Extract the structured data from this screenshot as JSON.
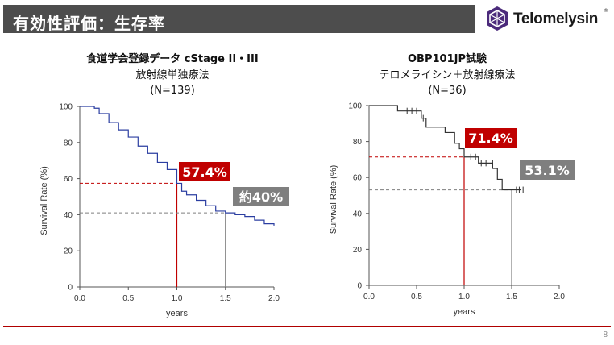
{
  "header": {
    "title": "有効性評価：生存率"
  },
  "logo": {
    "text": "Telomelysin",
    "reg": "®",
    "icon": "telomelysin-logo-icon",
    "color": "#4b2a7b"
  },
  "page_number": "8",
  "colors": {
    "kaplan_meier_line": "#2b3ea1",
    "highlight_red": "#c00000",
    "label_gray": "#7f7f7f",
    "header_bg": "#4d4d4d"
  },
  "left_title": {
    "line1": "食道学会登録データ cStage II・III",
    "line2": "放射線単独療法",
    "line3": "(N=139)"
  },
  "right_title": {
    "line1": "OBP101JP試験",
    "line2": "テロメライシン＋放射線療法",
    "line3": "(N=36)"
  },
  "chart_data": [
    {
      "type": "line",
      "xlabel": "years",
      "ylabel": "Survival Rate (%)",
      "xlim": [
        0,
        2.0
      ],
      "ylim": [
        0,
        100
      ],
      "xticks": [
        "0.0",
        "0.5",
        "1.0",
        "1.5",
        "2.0"
      ],
      "yticks": [
        "0",
        "20",
        "40",
        "60",
        "80",
        "100"
      ],
      "grid": false,
      "series": [
        {
          "x": [
            0,
            0.15,
            0.2,
            0.3,
            0.4,
            0.5,
            0.6,
            0.7,
            0.8,
            0.9,
            1.0,
            1.05,
            1.1,
            1.2,
            1.3,
            1.4,
            1.5,
            1.6,
            1.7,
            1.8,
            1.9,
            2.0
          ],
          "y": [
            100,
            99,
            96,
            91,
            87,
            83,
            78,
            74,
            69,
            65,
            57.4,
            53,
            51,
            48,
            45,
            42,
            41,
            40,
            39,
            37,
            35,
            34
          ]
        }
      ],
      "annotations": [
        {
          "x": 1.0,
          "y": 57.4,
          "label": "57.4%",
          "style": "red"
        },
        {
          "x": 1.5,
          "y": 41,
          "label": "約40%",
          "style": "gray"
        }
      ]
    },
    {
      "type": "line",
      "xlabel": "years",
      "ylabel": "Survival Rate (%)",
      "xlim": [
        0,
        2.0
      ],
      "ylim": [
        0,
        100
      ],
      "xticks": [
        "0.0",
        "0.5",
        "1.0",
        "1.5",
        "2.0"
      ],
      "yticks": [
        "0",
        "20",
        "40",
        "60",
        "80",
        "100"
      ],
      "grid": false,
      "series": [
        {
          "x": [
            0,
            0.3,
            0.55,
            0.6,
            0.8,
            0.9,
            0.95,
            1.0,
            1.15,
            1.3,
            1.35,
            1.4,
            1.6
          ],
          "y": [
            100,
            97,
            93,
            88,
            85,
            79,
            76,
            71.4,
            68,
            65,
            59,
            53.1,
            53.1
          ]
        }
      ],
      "censor_marks": [
        {
          "x": 0.4,
          "y": 97
        },
        {
          "x": 0.45,
          "y": 97
        },
        {
          "x": 0.5,
          "y": 97
        },
        {
          "x": 0.57,
          "y": 93
        },
        {
          "x": 1.07,
          "y": 71.4
        },
        {
          "x": 1.12,
          "y": 71.4
        },
        {
          "x": 1.18,
          "y": 68
        },
        {
          "x": 1.23,
          "y": 68
        },
        {
          "x": 1.3,
          "y": 68
        },
        {
          "x": 1.55,
          "y": 53.1
        },
        {
          "x": 1.58,
          "y": 53.1
        },
        {
          "x": 1.62,
          "y": 53.1
        }
      ],
      "annotations": [
        {
          "x": 1.0,
          "y": 71.4,
          "label": "71.4%",
          "style": "red"
        },
        {
          "x": 1.5,
          "y": 53.1,
          "label": "53.1%",
          "style": "gray"
        }
      ]
    }
  ]
}
